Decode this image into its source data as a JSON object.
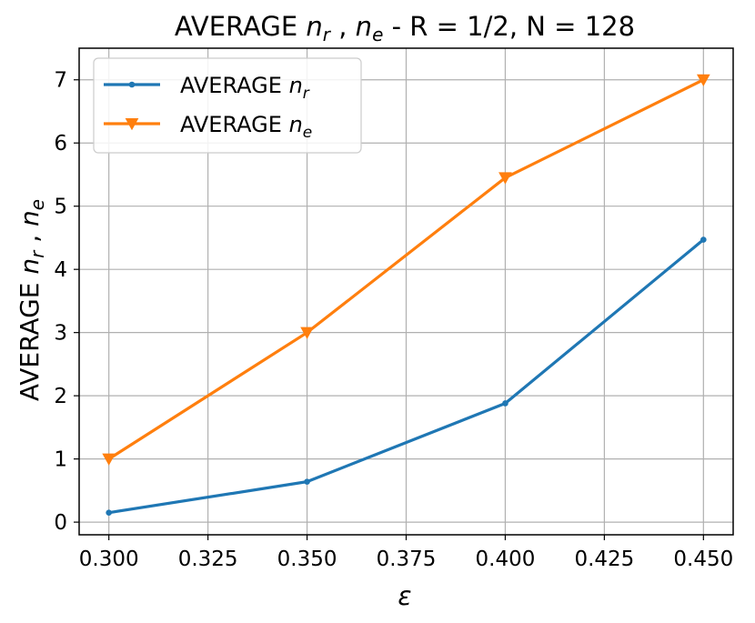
{
  "chart_data": {
    "type": "line",
    "title": {
      "prefix": "AVERAGE ",
      "n1": "n",
      "s1": "r",
      "mid": " , ",
      "n2": "n",
      "s2": "e",
      "suffix": " - R = 1/2, N = 128"
    },
    "xlabel": "ε",
    "ylabel": {
      "prefix": "AVERAGE ",
      "n1": "n",
      "s1": "r",
      "mid": " , ",
      "n2": "n",
      "s2": "e"
    },
    "x": [
      0.3,
      0.35,
      0.4,
      0.45
    ],
    "xlim": [
      0.2925,
      0.4575
    ],
    "ylim": [
      -0.2,
      7.5
    ],
    "xticks": [
      0.3,
      0.325,
      0.35,
      0.375,
      0.4,
      0.425,
      0.45
    ],
    "xtick_labels": [
      "0.300",
      "0.325",
      "0.350",
      "0.375",
      "0.400",
      "0.425",
      "0.450"
    ],
    "yticks": [
      0,
      1,
      2,
      3,
      4,
      5,
      6,
      7
    ],
    "ytick_labels": [
      "0",
      "1",
      "2",
      "3",
      "4",
      "5",
      "6",
      "7"
    ],
    "grid": true,
    "legend_position": "upper-left",
    "series": [
      {
        "name": "AVERAGE n_r",
        "label_prefix": "AVERAGE ",
        "label_var": "n",
        "label_sub": "r",
        "color": "#1f77b4",
        "marker": "point",
        "values": [
          0.15,
          0.64,
          1.88,
          4.47
        ]
      },
      {
        "name": "AVERAGE n_e",
        "label_prefix": "AVERAGE ",
        "label_var": "n",
        "label_sub": "e",
        "color": "#ff7f0e",
        "marker": "triangle-down",
        "values": [
          1.0,
          3.0,
          5.45,
          7.0
        ]
      }
    ]
  }
}
